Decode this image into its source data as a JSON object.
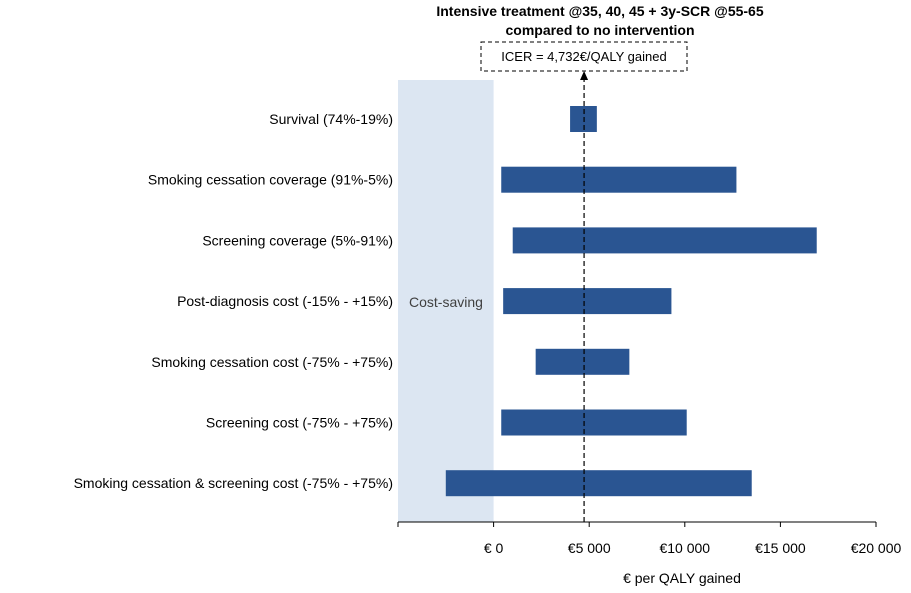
{
  "chart_data": {
    "type": "bar",
    "title": "Intensive treatment @35, 40, 45 + 3y-SCR @55-65",
    "subtitle": "compared to no intervention",
    "icer_label": "ICER = 4,732€/QALY gained",
    "icer_value": 4732,
    "xlabel": "€ per QALY gained",
    "xlim": [
      -5000,
      20000
    ],
    "x_ticks": [
      {
        "value": 0,
        "label": "€ 0"
      },
      {
        "value": 5000,
        "label": "€5 000"
      },
      {
        "value": 10000,
        "label": "€10 000"
      },
      {
        "value": 15000,
        "label": "€15 000"
      },
      {
        "value": 20000,
        "label": "€20 000"
      }
    ],
    "shaded_region": {
      "label": "Cost-saving",
      "from": -5000,
      "to": 0,
      "color": "#dce6f2"
    },
    "bar_color": "#2a5592",
    "categories": [
      "Survival (74%-19%)",
      "Smoking cessation coverage (91%-5%)",
      "Screening coverage  (5%-91%)",
      "Post-diagnosis cost (-15% - +15%)",
      "Smoking cessation cost (-75% - +75%)",
      "Screening cost  (-75% - +75%)",
      "Smoking cessation & screening cost  (-75% - +75%)"
    ],
    "ranges": [
      [
        4000,
        5400
      ],
      [
        400,
        12700
      ],
      [
        1000,
        16900
      ],
      [
        500,
        9300
      ],
      [
        2200,
        7100
      ],
      [
        400,
        10100
      ],
      [
        -2500,
        13500
      ]
    ],
    "grid": false,
    "legend": "none"
  }
}
